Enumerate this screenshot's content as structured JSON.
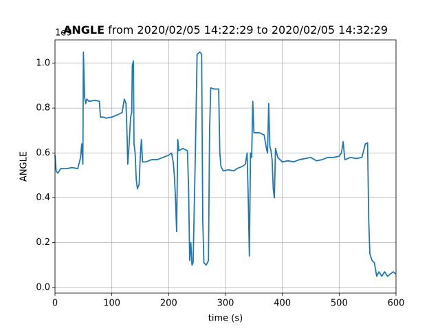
{
  "chart_data": {
    "type": "line",
    "title": {
      "bold": "ANGLE",
      "rest": "from 2020/02/05 14:22:29 to 2020/02/05 14:32:29"
    },
    "x_label": "time (s)",
    "y_label": "ANGLE",
    "y_offset_label": "1e9",
    "x": [
      0,
      2,
      5,
      10,
      20,
      30,
      40,
      45,
      47,
      49,
      50,
      52,
      54,
      56,
      60,
      70,
      78,
      80,
      85,
      90,
      100,
      110,
      118,
      122,
      125,
      127,
      128,
      130,
      133,
      135,
      136,
      138,
      139,
      141,
      143,
      145,
      148,
      150,
      152,
      154,
      160,
      170,
      180,
      190,
      200,
      205,
      208,
      210,
      212,
      214,
      216,
      218,
      225,
      233,
      235,
      237,
      239,
      241,
      243,
      247,
      250,
      255,
      258,
      260,
      262,
      266,
      270,
      272,
      274,
      280,
      288,
      290,
      292,
      296,
      305,
      315,
      320,
      330,
      335,
      338,
      340,
      342,
      344,
      346,
      348,
      350,
      360,
      368,
      372,
      374,
      376,
      378,
      380,
      382,
      384,
      386,
      388,
      392,
      400,
      410,
      420,
      430,
      440,
      450,
      460,
      470,
      480,
      490,
      500,
      504,
      507,
      510,
      520,
      530,
      540,
      546,
      550,
      552,
      554,
      558,
      562,
      566,
      570,
      575,
      580,
      585,
      590,
      595,
      600
    ],
    "series": [
      {
        "name": "ANGLE",
        "color": "#1f77b4",
        "values": [
          0.59,
          0.52,
          0.51,
          0.53,
          0.53,
          0.535,
          0.53,
          0.58,
          0.64,
          0.55,
          1.05,
          0.85,
          0.82,
          0.84,
          0.83,
          0.835,
          0.83,
          0.76,
          0.76,
          0.755,
          0.76,
          0.77,
          0.78,
          0.84,
          0.82,
          0.66,
          0.55,
          0.62,
          0.76,
          0.78,
          0.99,
          1.01,
          0.64,
          0.6,
          0.48,
          0.44,
          0.46,
          0.58,
          0.66,
          0.56,
          0.56,
          0.57,
          0.57,
          0.58,
          0.59,
          0.6,
          0.56,
          0.5,
          0.4,
          0.25,
          0.66,
          0.61,
          0.62,
          0.61,
          0.45,
          0.12,
          0.2,
          0.1,
          0.11,
          0.6,
          1.04,
          1.05,
          1.04,
          0.3,
          0.11,
          0.1,
          0.12,
          0.7,
          0.89,
          0.885,
          0.885,
          0.6,
          0.54,
          0.52,
          0.525,
          0.52,
          0.53,
          0.54,
          0.55,
          0.6,
          0.4,
          0.14,
          0.6,
          0.58,
          0.83,
          0.69,
          0.69,
          0.68,
          0.62,
          0.6,
          0.82,
          0.63,
          0.61,
          0.57,
          0.44,
          0.4,
          0.62,
          0.58,
          0.56,
          0.565,
          0.56,
          0.57,
          0.575,
          0.58,
          0.565,
          0.57,
          0.58,
          0.58,
          0.585,
          0.6,
          0.65,
          0.57,
          0.58,
          0.575,
          0.58,
          0.64,
          0.645,
          0.3,
          0.15,
          0.12,
          0.11,
          0.05,
          0.07,
          0.05,
          0.07,
          0.05,
          0.06,
          0.07,
          0.06
        ]
      }
    ],
    "xlim": [
      0,
      600
    ],
    "xticks": [
      0,
      100,
      200,
      300,
      400,
      500,
      600
    ],
    "ylim": [
      -0.025,
      1.104
    ],
    "yticks": [
      {
        "value": 0,
        "label": "0.0"
      },
      0.2,
      0.4,
      0.6,
      0.8,
      {
        "value": 1,
        "label": "1.0"
      }
    ],
    "grid": true
  }
}
